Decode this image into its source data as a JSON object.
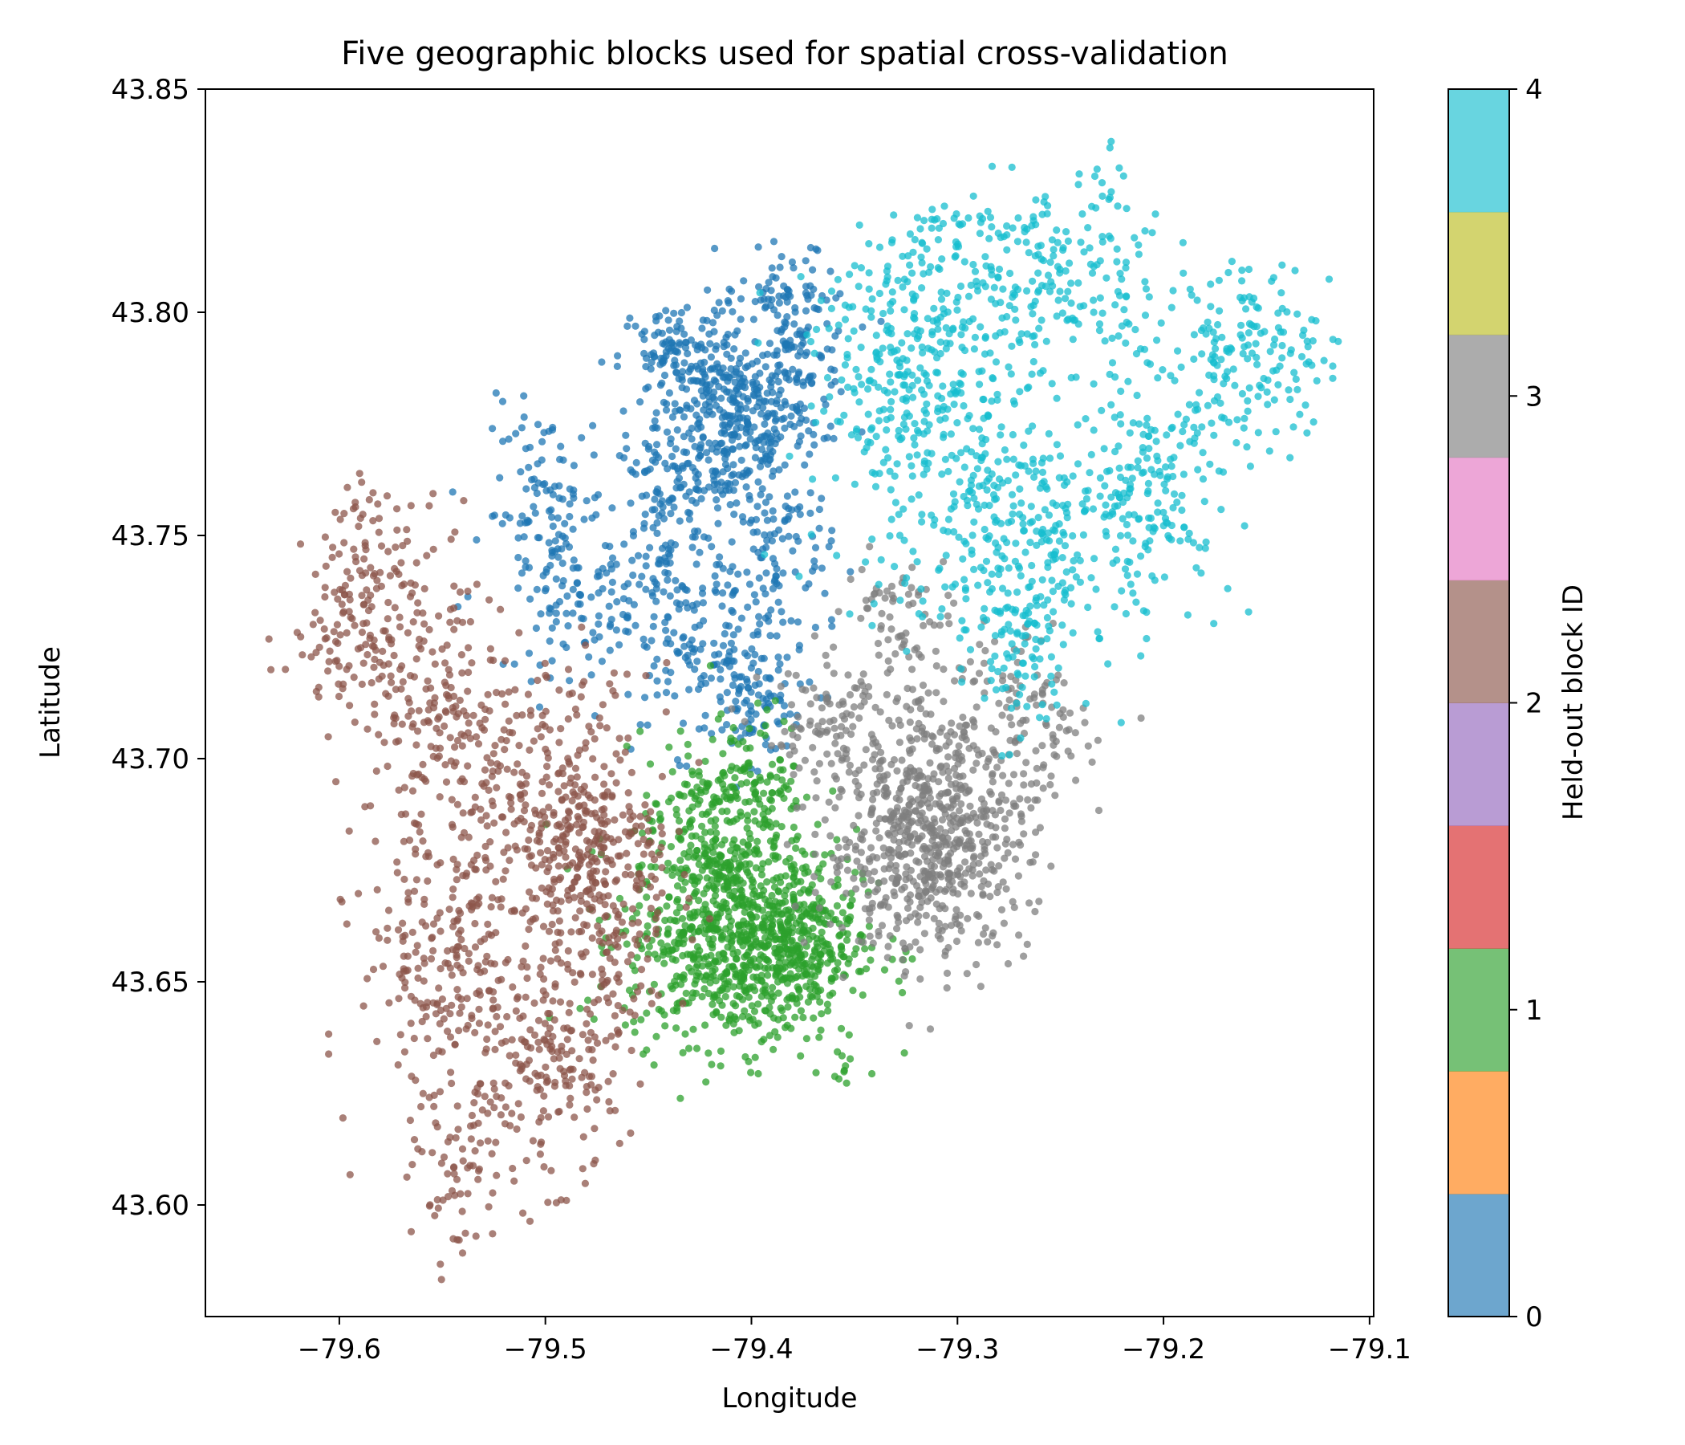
{
  "chart_data": {
    "type": "scatter",
    "title": "Five geographic blocks used for spatial cross-validation",
    "xlabel": "Longitude",
    "ylabel": "Latitude",
    "xlim": [
      -79.665,
      -79.098
    ],
    "ylim": [
      43.575,
      43.85
    ],
    "x_ticks": [
      -79.6,
      -79.5,
      -79.4,
      -79.3,
      -79.2,
      -79.1
    ],
    "x_tick_labels": [
      "−79.6",
      "−79.5",
      "−79.4",
      "−79.3",
      "−79.2",
      "−79.1"
    ],
    "y_ticks": [
      43.6,
      43.65,
      43.7,
      43.75,
      43.8,
      43.85
    ],
    "y_tick_labels": [
      "43.60",
      "43.65",
      "43.70",
      "43.75",
      "43.80",
      "43.85"
    ],
    "grid": false,
    "colorbar": {
      "label": "Held-out block ID",
      "range": [
        0,
        4
      ],
      "ticks": [
        0,
        1,
        2,
        3,
        4
      ],
      "tick_labels": [
        "0",
        "1",
        "2",
        "3",
        "4"
      ],
      "segments": [
        "#1f77b4",
        "#ff7f0e",
        "#2ca02c",
        "#d62728",
        "#9467bd",
        "#8c564b",
        "#e377c2",
        "#7f7f7f",
        "#bcbd22",
        "#17becf"
      ],
      "alpha": 0.65
    },
    "marker_alpha": 0.75,
    "series": [
      {
        "block": 0,
        "color": "#1f77b4",
        "clusters": [
          {
            "lon": -79.41,
            "lat": 43.775,
            "slon": 0.018,
            "slat": 0.012,
            "n": 420
          },
          {
            "lon": -79.375,
            "lat": 43.79,
            "slon": 0.012,
            "slat": 0.01,
            "n": 120
          },
          {
            "lon": -79.44,
            "lat": 43.79,
            "slon": 0.012,
            "slat": 0.006,
            "n": 90
          },
          {
            "lon": -79.445,
            "lat": 43.755,
            "slon": 0.012,
            "slat": 0.012,
            "n": 110
          },
          {
            "lon": -79.42,
            "lat": 43.725,
            "slon": 0.025,
            "slat": 0.012,
            "n": 220
          },
          {
            "lon": -79.5,
            "lat": 43.755,
            "slon": 0.015,
            "slat": 0.012,
            "n": 110
          },
          {
            "lon": -79.485,
            "lat": 43.735,
            "slon": 0.014,
            "slat": 0.008,
            "n": 70
          },
          {
            "lon": -79.385,
            "lat": 43.745,
            "slon": 0.012,
            "slat": 0.01,
            "n": 60
          },
          {
            "lon": -79.4,
            "lat": 43.712,
            "slon": 0.008,
            "slat": 0.006,
            "n": 50
          },
          {
            "lon": -79.385,
            "lat": 43.805,
            "slon": 0.01,
            "slat": 0.004,
            "n": 35
          }
        ]
      },
      {
        "block": 1,
        "color": "#2ca02c",
        "clusters": [
          {
            "lon": -79.405,
            "lat": 43.66,
            "slon": 0.028,
            "slat": 0.012,
            "n": 900
          },
          {
            "lon": -79.425,
            "lat": 43.685,
            "slon": 0.014,
            "slat": 0.01,
            "n": 170
          },
          {
            "lon": -79.395,
            "lat": 43.695,
            "slon": 0.01,
            "slat": 0.008,
            "n": 100
          },
          {
            "lon": -79.375,
            "lat": 43.66,
            "slon": 0.01,
            "slat": 0.01,
            "n": 120
          },
          {
            "lon": -79.357,
            "lat": 43.631,
            "slon": 0.002,
            "slat": 0.002,
            "n": 8
          }
        ]
      },
      {
        "block": 2,
        "color": "#8c564b",
        "clusters": [
          {
            "lon": -79.475,
            "lat": 43.67,
            "slon": 0.018,
            "slat": 0.018,
            "n": 320
          },
          {
            "lon": -79.5,
            "lat": 43.69,
            "slon": 0.025,
            "slat": 0.015,
            "n": 230
          },
          {
            "lon": -79.55,
            "lat": 43.655,
            "slon": 0.02,
            "slat": 0.018,
            "n": 230
          },
          {
            "lon": -79.5,
            "lat": 43.63,
            "slon": 0.018,
            "slat": 0.012,
            "n": 170
          },
          {
            "lon": -79.54,
            "lat": 43.605,
            "slon": 0.012,
            "slat": 0.01,
            "n": 70
          },
          {
            "lon": -79.575,
            "lat": 43.73,
            "slon": 0.02,
            "slat": 0.015,
            "n": 160
          },
          {
            "lon": -79.59,
            "lat": 43.74,
            "slon": 0.01,
            "slat": 0.012,
            "n": 50
          },
          {
            "lon": -79.545,
            "lat": 43.71,
            "slon": 0.015,
            "slat": 0.015,
            "n": 120
          },
          {
            "lon": -79.61,
            "lat": 43.725,
            "slon": 0.01,
            "slat": 0.006,
            "n": 20
          }
        ]
      },
      {
        "block": 3,
        "color": "#7f7f7f",
        "clusters": [
          {
            "lon": -79.315,
            "lat": 43.68,
            "slon": 0.025,
            "slat": 0.012,
            "n": 600
          },
          {
            "lon": -79.3,
            "lat": 43.705,
            "slon": 0.025,
            "slat": 0.012,
            "n": 200
          },
          {
            "lon": -79.365,
            "lat": 43.705,
            "slon": 0.015,
            "slat": 0.008,
            "n": 90
          },
          {
            "lon": -79.33,
            "lat": 43.73,
            "slon": 0.012,
            "slat": 0.01,
            "n": 60
          },
          {
            "lon": -79.26,
            "lat": 43.705,
            "slon": 0.012,
            "slat": 0.008,
            "n": 50
          }
        ]
      },
      {
        "block": 4,
        "color": "#17becf",
        "clusters": [
          {
            "lon": -79.32,
            "lat": 43.79,
            "slon": 0.025,
            "slat": 0.012,
            "n": 260
          },
          {
            "lon": -79.3,
            "lat": 43.76,
            "slon": 0.03,
            "slat": 0.015,
            "n": 230
          },
          {
            "lon": -79.27,
            "lat": 43.81,
            "slon": 0.02,
            "slat": 0.01,
            "n": 130
          },
          {
            "lon": -79.25,
            "lat": 43.75,
            "slon": 0.02,
            "slat": 0.015,
            "n": 160
          },
          {
            "lon": -79.27,
            "lat": 43.725,
            "slon": 0.012,
            "slat": 0.01,
            "n": 90
          },
          {
            "lon": -79.205,
            "lat": 43.76,
            "slon": 0.02,
            "slat": 0.012,
            "n": 160
          },
          {
            "lon": -79.17,
            "lat": 43.79,
            "slon": 0.02,
            "slat": 0.01,
            "n": 130
          },
          {
            "lon": -79.225,
            "lat": 43.805,
            "slon": 0.012,
            "slat": 0.01,
            "n": 60
          },
          {
            "lon": -79.14,
            "lat": 43.79,
            "slon": 0.01,
            "slat": 0.008,
            "n": 40
          },
          {
            "lon": -79.23,
            "lat": 43.83,
            "slon": 0.005,
            "slat": 0.004,
            "n": 15
          },
          {
            "lon": -79.31,
            "lat": 43.815,
            "slon": 0.012,
            "slat": 0.006,
            "n": 40
          }
        ]
      }
    ]
  }
}
